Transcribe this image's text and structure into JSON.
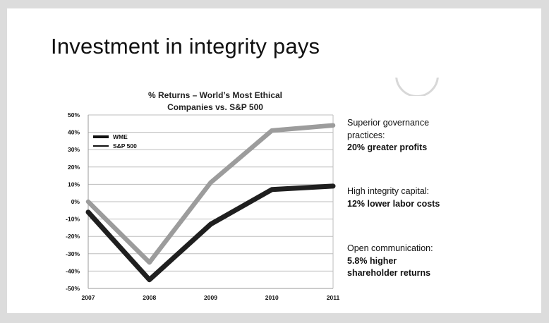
{
  "slide": {
    "title": "Investment in integrity pays"
  },
  "chart_data": {
    "type": "line",
    "title_lines": [
      "% Returns – World’s Most Ethical",
      "Companies vs. S&P 500"
    ],
    "x": [
      "2007",
      "2008",
      "2009",
      "2010",
      "2011"
    ],
    "y_ticks": [
      "50%",
      "40%",
      "30%",
      "20%",
      "10%",
      "0%",
      "-10%",
      "-20%",
      "-30%",
      "-40%",
      "-50%"
    ],
    "ylim": [
      -50,
      50
    ],
    "grid": true,
    "legend_placement": "top-left",
    "series": [
      {
        "name": "WME",
        "values": [
          -6,
          -45,
          -13,
          7,
          9
        ],
        "color": "#1f1f1f"
      },
      {
        "name": "S&P 500",
        "values": [
          0,
          -35,
          11,
          41,
          44
        ],
        "color": "#9c9c9c"
      }
    ]
  },
  "notes": [
    {
      "head": "Superior governance practices:",
      "value": "20% greater profits"
    },
    {
      "head": "High integrity capital:",
      "value": "12% lower labor costs"
    },
    {
      "head": "Open communication:",
      "value": "5.8% higher shareholder returns"
    }
  ]
}
